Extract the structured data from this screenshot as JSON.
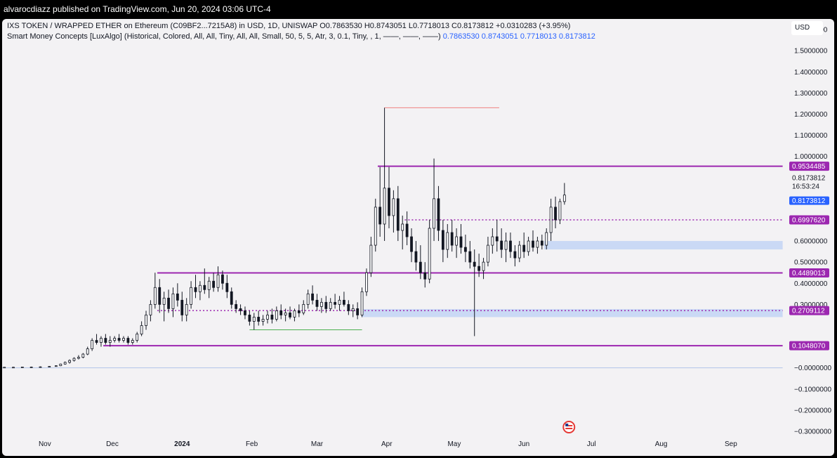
{
  "header": {
    "published": "alvarocdiazz published on TradingView.com, Jun 20, 2024 03:06 UTC-4"
  },
  "legend": {
    "symbol": "IXS TOKEN / WRAPPED ETHER on Ethereum (C09BF2...7215A8) in USD, 1D, UNISWAP",
    "ohlc": "O0.7863530  H0.8743051  L0.7718013  C0.8173812  +0.0310283 (+3.95%)",
    "indicator": "Smart Money Concepts [LuxAlgo] (Historical, Colored, All, All, Tiny, All, All, Small, 50, 5, 5, Atr, 3, 0.1, Tiny, , 1, ——, ——, ——)",
    "indicator_values": "0.7863530   0.8743051   0.7718013   0.8173812"
  },
  "currency": "USD",
  "chart_data": {
    "type": "candlestick",
    "y_ticks": [
      {
        "label": "1.6000000",
        "value": 1.6
      },
      {
        "label": "1.5000000",
        "value": 1.5
      },
      {
        "label": "1.4000000",
        "value": 1.4
      },
      {
        "label": "1.3000000",
        "value": 1.3
      },
      {
        "label": "1.2000000",
        "value": 1.2
      },
      {
        "label": "1.1000000",
        "value": 1.1
      },
      {
        "label": "1.0000000",
        "value": 1.0
      },
      {
        "label": "0.6000000",
        "value": 0.6
      },
      {
        "label": "0.5000000",
        "value": 0.5
      },
      {
        "label": "0.4000000",
        "value": 0.4
      },
      {
        "label": "0.3000000",
        "value": 0.3
      },
      {
        "label": "−0.0000000",
        "value": -0.0
      },
      {
        "label": "−0.1000000",
        "value": -0.1
      },
      {
        "label": "−0.2000000",
        "value": -0.2
      },
      {
        "label": "−0.3000000",
        "value": -0.3
      }
    ],
    "ylim": [
      -0.33,
      1.65
    ],
    "x_ticks": [
      {
        "label": "Nov",
        "date": "2023-11-01"
      },
      {
        "label": "Dec",
        "date": "2023-12-01"
      },
      {
        "label": "2024",
        "date": "2024-01-01",
        "bold": true
      },
      {
        "label": "Feb",
        "date": "2024-02-01"
      },
      {
        "label": "Mar",
        "date": "2024-03-01"
      },
      {
        "label": "Apr",
        "date": "2024-04-01"
      },
      {
        "label": "May",
        "date": "2024-05-01"
      },
      {
        "label": "Jun",
        "date": "2024-06-01"
      },
      {
        "label": "Jul",
        "date": "2024-07-01"
      },
      {
        "label": "Aug",
        "date": "2024-08-01"
      },
      {
        "label": "Sep",
        "date": "2024-09-01"
      }
    ],
    "xlim": [
      "2023-10-13",
      "2024-09-26"
    ],
    "price_labels": [
      {
        "label": "0.9534485",
        "value": 0.9534485,
        "color": "#9c27b0"
      },
      {
        "label": "0.6997620",
        "value": 0.699762,
        "color": "#9c27b0"
      },
      {
        "label": "0.4489013",
        "value": 0.4489013,
        "color": "#9c27b0"
      },
      {
        "label": "0.2709112",
        "value": 0.2709112,
        "color": "#9c27b0"
      },
      {
        "label": "0.1048070",
        "value": 0.104807,
        "color": "#9c27b0"
      }
    ],
    "current_price": {
      "label": "0.8173812",
      "value": 0.8173812,
      "countdown": "16:53:24",
      "color": "#2962ff"
    },
    "levels": [
      {
        "value": 0.9534485,
        "from": "2024-03-28",
        "to": "2024-09-24",
        "style": "solid",
        "color": "#9c27b0"
      },
      {
        "value": 0.699762,
        "from": "2024-04-09",
        "to": "2024-09-24",
        "style": "dotted",
        "color": "#9c27b0"
      },
      {
        "value": 0.4489013,
        "from": "2023-12-21",
        "to": "2024-09-24",
        "style": "solid",
        "color": "#9c27b0"
      },
      {
        "value": 0.2709112,
        "from": "2023-12-21",
        "to": "2024-09-24",
        "style": "dotted",
        "color": "#9c27b0"
      },
      {
        "value": 0.104807,
        "from": "2023-11-27",
        "to": "2024-09-24",
        "style": "solid",
        "color": "#9c27b0"
      },
      {
        "value": 1.23,
        "from": "2024-03-31",
        "to": "2024-05-21",
        "style": "solid",
        "color": "#f08080"
      },
      {
        "value": 0.18,
        "from": "2024-01-31",
        "to": "2024-03-21",
        "style": "solid",
        "color": "#4caf50"
      },
      {
        "value": 0.0,
        "from": "2023-10-13",
        "to": "2024-09-24",
        "style": "solid",
        "color": "#b2c5e8"
      }
    ],
    "zones": [
      {
        "from": "2024-06-10",
        "to": "2024-09-24",
        "top": 0.6,
        "bottom": 0.56,
        "color": "#bcd0f5"
      },
      {
        "from": "2024-03-21",
        "to": "2024-09-24",
        "top": 0.278,
        "bottom": 0.24,
        "color": "#bcd0f5"
      }
    ],
    "candles": [
      {
        "date": "2023-10-14",
        "o": 0.002,
        "h": 0.004,
        "l": 0.001,
        "c": 0.003
      },
      {
        "date": "2023-10-18",
        "o": 0.003,
        "h": 0.005,
        "l": 0.002,
        "c": 0.003
      },
      {
        "date": "2023-10-22",
        "o": 0.003,
        "h": 0.005,
        "l": 0.002,
        "c": 0.004
      },
      {
        "date": "2023-10-26",
        "o": 0.004,
        "h": 0.006,
        "l": 0.003,
        "c": 0.004
      },
      {
        "date": "2023-10-30",
        "o": 0.004,
        "h": 0.007,
        "l": 0.003,
        "c": 0.005
      },
      {
        "date": "2023-11-03",
        "o": 0.005,
        "h": 0.008,
        "l": 0.004,
        "c": 0.007
      },
      {
        "date": "2023-11-06",
        "o": 0.007,
        "h": 0.012,
        "l": 0.005,
        "c": 0.01
      },
      {
        "date": "2023-11-08",
        "o": 0.01,
        "h": 0.02,
        "l": 0.008,
        "c": 0.018
      },
      {
        "date": "2023-11-10",
        "o": 0.018,
        "h": 0.03,
        "l": 0.015,
        "c": 0.026
      },
      {
        "date": "2023-11-12",
        "o": 0.026,
        "h": 0.04,
        "l": 0.02,
        "c": 0.035
      },
      {
        "date": "2023-11-14",
        "o": 0.035,
        "h": 0.05,
        "l": 0.03,
        "c": 0.045
      },
      {
        "date": "2023-11-16",
        "o": 0.045,
        "h": 0.06,
        "l": 0.04,
        "c": 0.05
      },
      {
        "date": "2023-11-18",
        "o": 0.05,
        "h": 0.07,
        "l": 0.045,
        "c": 0.065
      },
      {
        "date": "2023-11-20",
        "o": 0.065,
        "h": 0.1,
        "l": 0.06,
        "c": 0.09
      },
      {
        "date": "2023-11-22",
        "o": 0.09,
        "h": 0.14,
        "l": 0.08,
        "c": 0.13
      },
      {
        "date": "2023-11-24",
        "o": 0.13,
        "h": 0.16,
        "l": 0.11,
        "c": 0.12
      },
      {
        "date": "2023-11-26",
        "o": 0.12,
        "h": 0.15,
        "l": 0.1,
        "c": 0.14
      },
      {
        "date": "2023-11-28",
        "o": 0.14,
        "h": 0.16,
        "l": 0.11,
        "c": 0.12
      },
      {
        "date": "2023-11-30",
        "o": 0.12,
        "h": 0.15,
        "l": 0.1,
        "c": 0.13
      },
      {
        "date": "2023-12-02",
        "o": 0.13,
        "h": 0.15,
        "l": 0.12,
        "c": 0.14
      },
      {
        "date": "2023-12-04",
        "o": 0.14,
        "h": 0.16,
        "l": 0.12,
        "c": 0.13
      },
      {
        "date": "2023-12-06",
        "o": 0.13,
        "h": 0.15,
        "l": 0.12,
        "c": 0.14
      },
      {
        "date": "2023-12-08",
        "o": 0.14,
        "h": 0.15,
        "l": 0.11,
        "c": 0.12
      },
      {
        "date": "2023-12-10",
        "o": 0.12,
        "h": 0.14,
        "l": 0.11,
        "c": 0.13
      },
      {
        "date": "2023-12-12",
        "o": 0.13,
        "h": 0.17,
        "l": 0.12,
        "c": 0.16
      },
      {
        "date": "2023-12-14",
        "o": 0.16,
        "h": 0.22,
        "l": 0.15,
        "c": 0.2
      },
      {
        "date": "2023-12-16",
        "o": 0.2,
        "h": 0.27,
        "l": 0.18,
        "c": 0.25
      },
      {
        "date": "2023-12-18",
        "o": 0.25,
        "h": 0.32,
        "l": 0.22,
        "c": 0.3
      },
      {
        "date": "2023-12-20",
        "o": 0.3,
        "h": 0.45,
        "l": 0.28,
        "c": 0.38
      },
      {
        "date": "2023-12-22",
        "o": 0.38,
        "h": 0.42,
        "l": 0.26,
        "c": 0.3
      },
      {
        "date": "2023-12-24",
        "o": 0.3,
        "h": 0.36,
        "l": 0.22,
        "c": 0.33
      },
      {
        "date": "2023-12-26",
        "o": 0.33,
        "h": 0.37,
        "l": 0.26,
        "c": 0.28
      },
      {
        "date": "2023-12-28",
        "o": 0.28,
        "h": 0.38,
        "l": 0.24,
        "c": 0.35
      },
      {
        "date": "2023-12-30",
        "o": 0.35,
        "h": 0.4,
        "l": 0.29,
        "c": 0.32
      },
      {
        "date": "2024-01-01",
        "o": 0.32,
        "h": 0.36,
        "l": 0.22,
        "c": 0.25
      },
      {
        "date": "2024-01-03",
        "o": 0.25,
        "h": 0.33,
        "l": 0.22,
        "c": 0.3
      },
      {
        "date": "2024-01-05",
        "o": 0.3,
        "h": 0.41,
        "l": 0.28,
        "c": 0.38
      },
      {
        "date": "2024-01-07",
        "o": 0.38,
        "h": 0.44,
        "l": 0.33,
        "c": 0.36
      },
      {
        "date": "2024-01-09",
        "o": 0.36,
        "h": 0.41,
        "l": 0.32,
        "c": 0.39
      },
      {
        "date": "2024-01-11",
        "o": 0.39,
        "h": 0.47,
        "l": 0.35,
        "c": 0.37
      },
      {
        "date": "2024-01-13",
        "o": 0.37,
        "h": 0.43,
        "l": 0.33,
        "c": 0.41
      },
      {
        "date": "2024-01-15",
        "o": 0.41,
        "h": 0.45,
        "l": 0.36,
        "c": 0.38
      },
      {
        "date": "2024-01-17",
        "o": 0.38,
        "h": 0.48,
        "l": 0.36,
        "c": 0.44
      },
      {
        "date": "2024-01-19",
        "o": 0.44,
        "h": 0.46,
        "l": 0.37,
        "c": 0.4
      },
      {
        "date": "2024-01-21",
        "o": 0.4,
        "h": 0.44,
        "l": 0.33,
        "c": 0.36
      },
      {
        "date": "2024-01-23",
        "o": 0.36,
        "h": 0.38,
        "l": 0.28,
        "c": 0.3
      },
      {
        "date": "2024-01-25",
        "o": 0.3,
        "h": 0.32,
        "l": 0.26,
        "c": 0.28
      },
      {
        "date": "2024-01-27",
        "o": 0.28,
        "h": 0.3,
        "l": 0.25,
        "c": 0.27
      },
      {
        "date": "2024-01-29",
        "o": 0.27,
        "h": 0.29,
        "l": 0.23,
        "c": 0.25
      },
      {
        "date": "2024-01-31",
        "o": 0.25,
        "h": 0.27,
        "l": 0.2,
        "c": 0.22
      },
      {
        "date": "2024-02-02",
        "o": 0.22,
        "h": 0.26,
        "l": 0.18,
        "c": 0.24
      },
      {
        "date": "2024-02-04",
        "o": 0.24,
        "h": 0.27,
        "l": 0.2,
        "c": 0.22
      },
      {
        "date": "2024-02-06",
        "o": 0.22,
        "h": 0.25,
        "l": 0.2,
        "c": 0.23
      },
      {
        "date": "2024-02-08",
        "o": 0.23,
        "h": 0.27,
        "l": 0.21,
        "c": 0.25
      },
      {
        "date": "2024-02-10",
        "o": 0.25,
        "h": 0.28,
        "l": 0.21,
        "c": 0.23
      },
      {
        "date": "2024-02-12",
        "o": 0.23,
        "h": 0.29,
        "l": 0.22,
        "c": 0.27
      },
      {
        "date": "2024-02-14",
        "o": 0.27,
        "h": 0.3,
        "l": 0.23,
        "c": 0.25
      },
      {
        "date": "2024-02-16",
        "o": 0.25,
        "h": 0.28,
        "l": 0.22,
        "c": 0.26
      },
      {
        "date": "2024-02-18",
        "o": 0.26,
        "h": 0.29,
        "l": 0.23,
        "c": 0.24
      },
      {
        "date": "2024-02-20",
        "o": 0.24,
        "h": 0.28,
        "l": 0.22,
        "c": 0.27
      },
      {
        "date": "2024-02-22",
        "o": 0.27,
        "h": 0.3,
        "l": 0.24,
        "c": 0.26
      },
      {
        "date": "2024-02-24",
        "o": 0.26,
        "h": 0.32,
        "l": 0.25,
        "c": 0.3
      },
      {
        "date": "2024-02-26",
        "o": 0.3,
        "h": 0.37,
        "l": 0.28,
        "c": 0.35
      },
      {
        "date": "2024-02-28",
        "o": 0.35,
        "h": 0.39,
        "l": 0.3,
        "c": 0.32
      },
      {
        "date": "2024-03-01",
        "o": 0.32,
        "h": 0.35,
        "l": 0.27,
        "c": 0.29
      },
      {
        "date": "2024-03-03",
        "o": 0.29,
        "h": 0.33,
        "l": 0.26,
        "c": 0.31
      },
      {
        "date": "2024-03-05",
        "o": 0.31,
        "h": 0.34,
        "l": 0.26,
        "c": 0.28
      },
      {
        "date": "2024-03-07",
        "o": 0.28,
        "h": 0.33,
        "l": 0.27,
        "c": 0.31
      },
      {
        "date": "2024-03-09",
        "o": 0.31,
        "h": 0.35,
        "l": 0.28,
        "c": 0.3
      },
      {
        "date": "2024-03-11",
        "o": 0.3,
        "h": 0.34,
        "l": 0.27,
        "c": 0.32
      },
      {
        "date": "2024-03-13",
        "o": 0.32,
        "h": 0.36,
        "l": 0.29,
        "c": 0.3
      },
      {
        "date": "2024-03-15",
        "o": 0.3,
        "h": 0.32,
        "l": 0.25,
        "c": 0.27
      },
      {
        "date": "2024-03-17",
        "o": 0.27,
        "h": 0.3,
        "l": 0.24,
        "c": 0.28
      },
      {
        "date": "2024-03-19",
        "o": 0.28,
        "h": 0.31,
        "l": 0.23,
        "c": 0.25
      },
      {
        "date": "2024-03-21",
        "o": 0.25,
        "h": 0.38,
        "l": 0.24,
        "c": 0.36
      },
      {
        "date": "2024-03-23",
        "o": 0.36,
        "h": 0.47,
        "l": 0.34,
        "c": 0.45
      },
      {
        "date": "2024-03-25",
        "o": 0.45,
        "h": 0.62,
        "l": 0.43,
        "c": 0.58
      },
      {
        "date": "2024-03-27",
        "o": 0.58,
        "h": 0.8,
        "l": 0.55,
        "c": 0.76
      },
      {
        "date": "2024-03-29",
        "o": 0.76,
        "h": 0.95,
        "l": 0.62,
        "c": 0.68
      },
      {
        "date": "2024-03-31",
        "o": 0.68,
        "h": 1.23,
        "l": 0.6,
        "c": 0.85
      },
      {
        "date": "2024-04-02",
        "o": 0.85,
        "h": 0.95,
        "l": 0.66,
        "c": 0.72
      },
      {
        "date": "2024-04-04",
        "o": 0.72,
        "h": 0.84,
        "l": 0.64,
        "c": 0.8
      },
      {
        "date": "2024-04-06",
        "o": 0.8,
        "h": 0.86,
        "l": 0.6,
        "c": 0.65
      },
      {
        "date": "2024-04-08",
        "o": 0.65,
        "h": 0.72,
        "l": 0.56,
        "c": 0.68
      },
      {
        "date": "2024-04-10",
        "o": 0.68,
        "h": 0.74,
        "l": 0.58,
        "c": 0.62
      },
      {
        "date": "2024-04-12",
        "o": 0.62,
        "h": 0.66,
        "l": 0.5,
        "c": 0.55
      },
      {
        "date": "2024-04-14",
        "o": 0.55,
        "h": 0.6,
        "l": 0.46,
        "c": 0.5
      },
      {
        "date": "2024-04-16",
        "o": 0.5,
        "h": 0.58,
        "l": 0.42,
        "c": 0.45
      },
      {
        "date": "2024-04-18",
        "o": 0.45,
        "h": 0.5,
        "l": 0.38,
        "c": 0.42
      },
      {
        "date": "2024-04-20",
        "o": 0.42,
        "h": 0.7,
        "l": 0.4,
        "c": 0.66
      },
      {
        "date": "2024-04-22",
        "o": 0.66,
        "h": 0.99,
        "l": 0.6,
        "c": 0.8
      },
      {
        "date": "2024-04-24",
        "o": 0.8,
        "h": 0.86,
        "l": 0.6,
        "c": 0.65
      },
      {
        "date": "2024-04-26",
        "o": 0.65,
        "h": 0.7,
        "l": 0.5,
        "c": 0.56
      },
      {
        "date": "2024-04-28",
        "o": 0.56,
        "h": 0.68,
        "l": 0.52,
        "c": 0.64
      },
      {
        "date": "2024-04-30",
        "o": 0.64,
        "h": 0.7,
        "l": 0.55,
        "c": 0.58
      },
      {
        "date": "2024-05-02",
        "o": 0.58,
        "h": 0.66,
        "l": 0.52,
        "c": 0.62
      },
      {
        "date": "2024-05-04",
        "o": 0.62,
        "h": 0.68,
        "l": 0.54,
        "c": 0.57
      },
      {
        "date": "2024-05-06",
        "o": 0.57,
        "h": 0.63,
        "l": 0.5,
        "c": 0.55
      },
      {
        "date": "2024-05-08",
        "o": 0.55,
        "h": 0.6,
        "l": 0.47,
        "c": 0.5
      },
      {
        "date": "2024-05-10",
        "o": 0.5,
        "h": 0.56,
        "l": 0.15,
        "c": 0.48
      },
      {
        "date": "2024-05-12",
        "o": 0.48,
        "h": 0.54,
        "l": 0.43,
        "c": 0.46
      },
      {
        "date": "2024-05-14",
        "o": 0.46,
        "h": 0.52,
        "l": 0.42,
        "c": 0.5
      },
      {
        "date": "2024-05-16",
        "o": 0.5,
        "h": 0.62,
        "l": 0.48,
        "c": 0.58
      },
      {
        "date": "2024-05-18",
        "o": 0.58,
        "h": 0.66,
        "l": 0.54,
        "c": 0.62
      },
      {
        "date": "2024-05-20",
        "o": 0.62,
        "h": 0.7,
        "l": 0.55,
        "c": 0.6
      },
      {
        "date": "2024-05-22",
        "o": 0.6,
        "h": 0.66,
        "l": 0.52,
        "c": 0.56
      },
      {
        "date": "2024-05-24",
        "o": 0.56,
        "h": 0.64,
        "l": 0.5,
        "c": 0.6
      },
      {
        "date": "2024-05-26",
        "o": 0.6,
        "h": 0.64,
        "l": 0.52,
        "c": 0.55
      },
      {
        "date": "2024-05-28",
        "o": 0.55,
        "h": 0.58,
        "l": 0.48,
        "c": 0.52
      },
      {
        "date": "2024-05-30",
        "o": 0.52,
        "h": 0.6,
        "l": 0.5,
        "c": 0.58
      },
      {
        "date": "2024-06-01",
        "o": 0.58,
        "h": 0.64,
        "l": 0.52,
        "c": 0.55
      },
      {
        "date": "2024-06-03",
        "o": 0.55,
        "h": 0.62,
        "l": 0.53,
        "c": 0.6
      },
      {
        "date": "2024-06-05",
        "o": 0.6,
        "h": 0.65,
        "l": 0.55,
        "c": 0.57
      },
      {
        "date": "2024-06-07",
        "o": 0.57,
        "h": 0.62,
        "l": 0.54,
        "c": 0.6
      },
      {
        "date": "2024-06-09",
        "o": 0.6,
        "h": 0.63,
        "l": 0.56,
        "c": 0.58
      },
      {
        "date": "2024-06-11",
        "o": 0.58,
        "h": 0.66,
        "l": 0.56,
        "c": 0.64
      },
      {
        "date": "2024-06-13",
        "o": 0.64,
        "h": 0.8,
        "l": 0.6,
        "c": 0.76
      },
      {
        "date": "2024-06-15",
        "o": 0.76,
        "h": 0.81,
        "l": 0.66,
        "c": 0.7
      },
      {
        "date": "2024-06-17",
        "o": 0.7,
        "h": 0.8,
        "l": 0.68,
        "c": 0.786353
      },
      {
        "date": "2024-06-19",
        "o": 0.786353,
        "h": 0.8743051,
        "l": 0.7718013,
        "c": 0.8173812
      }
    ]
  }
}
